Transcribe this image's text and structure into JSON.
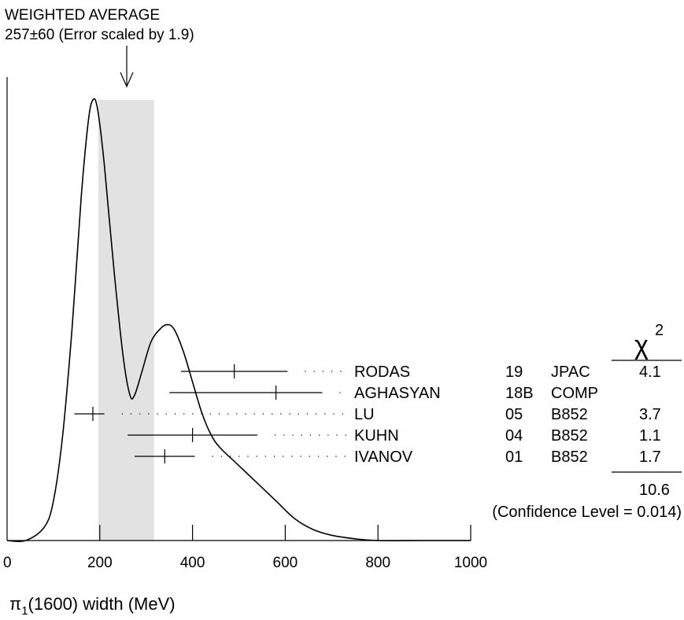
{
  "chart_data": {
    "type": "ideogram",
    "title": "WEIGHTED AVERAGE",
    "subtitle": "257±60 (Error scaled by 1.9)",
    "weighted_average": {
      "value": 257,
      "error": 60,
      "scale_factor": 1.9
    },
    "xlabel_symbol": "π",
    "xlabel_sub": "1",
    "xlabel_rest": "(1600) width (MeV)",
    "xlim": [
      0,
      1000
    ],
    "xticks": [
      "0",
      "200",
      "400",
      "600",
      "800",
      "1000"
    ],
    "chi2_header": "χ",
    "chi2_header_exp": "2",
    "measurements": [
      {
        "author": "RODAS",
        "year": "19",
        "tech": "JPAC",
        "value": 490,
        "err_lo": 115,
        "err_hi": 115,
        "chi2": "4.1"
      },
      {
        "author": "AGHASYAN",
        "year": "18B",
        "tech": "COMP",
        "value": 580,
        "err_lo": 230,
        "err_hi": 100,
        "chi2": ""
      },
      {
        "author": "LU",
        "year": "05",
        "tech": "B852",
        "value": 185,
        "err_lo": 40,
        "err_hi": 25,
        "chi2": "3.7"
      },
      {
        "author": "KUHN",
        "year": "04",
        "tech": "B852",
        "value": 400,
        "err_lo": 140,
        "err_hi": 140,
        "chi2": "1.1"
      },
      {
        "author": "IVANOV",
        "year": "01",
        "tech": "B852",
        "value": 340,
        "err_lo": 65,
        "err_hi": 65,
        "chi2": "1.7"
      }
    ],
    "chi2_total": "10.6",
    "confidence_level": "(Confidence Level = 0.014)",
    "ideogram_curve": [
      [
        0,
        0.0
      ],
      [
        40,
        0.0
      ],
      [
        80,
        0.03
      ],
      [
        100,
        0.09
      ],
      [
        120,
        0.24
      ],
      [
        140,
        0.48
      ],
      [
        160,
        0.78
      ],
      [
        175,
        0.95
      ],
      [
        185,
        1.0
      ],
      [
        195,
        0.98
      ],
      [
        210,
        0.85
      ],
      [
        230,
        0.62
      ],
      [
        250,
        0.42
      ],
      [
        265,
        0.33
      ],
      [
        275,
        0.33
      ],
      [
        290,
        0.38
      ],
      [
        310,
        0.45
      ],
      [
        330,
        0.48
      ],
      [
        345,
        0.49
      ],
      [
        360,
        0.48
      ],
      [
        380,
        0.43
      ],
      [
        400,
        0.36
      ],
      [
        420,
        0.29
      ],
      [
        440,
        0.24
      ],
      [
        460,
        0.21
      ],
      [
        500,
        0.17
      ],
      [
        540,
        0.13
      ],
      [
        580,
        0.09
      ],
      [
        620,
        0.05
      ],
      [
        660,
        0.025
      ],
      [
        700,
        0.012
      ],
      [
        750,
        0.004
      ],
      [
        800,
        0.0
      ],
      [
        900,
        0.0
      ],
      [
        1000,
        0.0
      ]
    ]
  }
}
